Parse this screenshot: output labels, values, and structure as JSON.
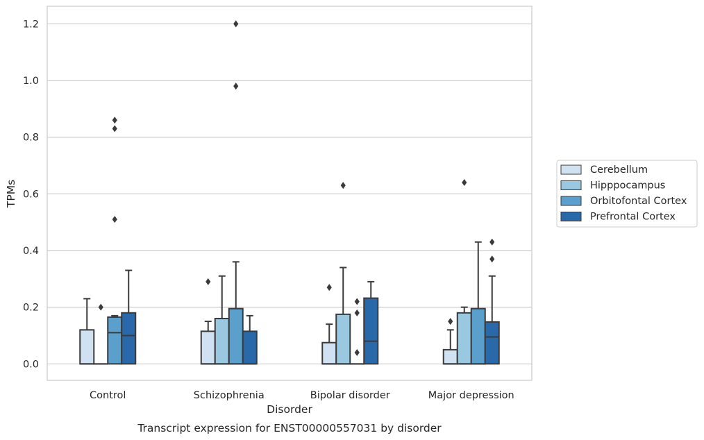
{
  "chart_data": {
    "type": "box",
    "title": "Transcript expression for ENST00000557031 by disorder",
    "xlabel": "Disorder",
    "ylabel": "TPMs",
    "ylim": [
      -0.058,
      1.262
    ],
    "yticks": [
      0.0,
      0.2,
      0.4,
      0.6,
      0.8,
      1.0,
      1.2
    ],
    "ytick_labels": [
      "0.0",
      "0.2",
      "0.4",
      "0.6",
      "0.8",
      "1.0",
      "1.2"
    ],
    "categories": [
      "Control",
      "Schizophrenia",
      "Bipolar disorder",
      "Major depression"
    ],
    "grid": "horizontal",
    "legend_position": "right",
    "series": [
      {
        "name": "Cerebellum",
        "color": "#d0e1f2",
        "boxes": [
          {
            "q1": 0.0,
            "median": 0.0,
            "q3": 0.12,
            "whisker_low": 0.0,
            "whisker_high": 0.23,
            "outliers": []
          },
          {
            "q1": 0.0,
            "median": 0.0,
            "q3": 0.115,
            "whisker_low": 0.0,
            "whisker_high": 0.15,
            "outliers": [
              0.29
            ]
          },
          {
            "q1": 0.0,
            "median": 0.0,
            "q3": 0.075,
            "whisker_low": 0.0,
            "whisker_high": 0.14,
            "outliers": [
              0.27
            ]
          },
          {
            "q1": 0.0,
            "median": 0.0,
            "q3": 0.05,
            "whisker_low": 0.0,
            "whisker_high": 0.12,
            "outliers": [
              0.15
            ]
          }
        ]
      },
      {
        "name": "Hipppocampus",
        "color": "#9ac8e0",
        "boxes": [
          {
            "q1": 0.0,
            "median": 0.0,
            "q3": 0.0,
            "whisker_low": 0.0,
            "whisker_high": 0.0,
            "outliers": [
              0.2
            ]
          },
          {
            "q1": 0.0,
            "median": 0.0,
            "q3": 0.16,
            "whisker_low": 0.0,
            "whisker_high": 0.31,
            "outliers": []
          },
          {
            "q1": 0.0,
            "median": 0.0,
            "q3": 0.175,
            "whisker_low": 0.0,
            "whisker_high": 0.34,
            "outliers": [
              0.63
            ]
          },
          {
            "q1": 0.0,
            "median": 0.0,
            "q3": 0.18,
            "whisker_low": 0.0,
            "whisker_high": 0.2,
            "outliers": [
              0.64
            ]
          }
        ]
      },
      {
        "name": "Orbitofontal Cortex",
        "color": "#5b9fcc",
        "boxes": [
          {
            "q1": 0.0,
            "median": 0.11,
            "q3": 0.165,
            "whisker_low": 0.0,
            "whisker_high": 0.17,
            "outliers": [
              0.51,
              0.83,
              0.86
            ]
          },
          {
            "q1": 0.0,
            "median": 0.0,
            "q3": 0.195,
            "whisker_low": 0.0,
            "whisker_high": 0.36,
            "outliers": [
              0.98,
              1.2
            ]
          },
          {
            "q1": 0.0,
            "median": 0.0,
            "q3": 0.0,
            "whisker_low": 0.0,
            "whisker_high": 0.0,
            "outliers": [
              0.04,
              0.18,
              0.22
            ]
          },
          {
            "q1": 0.0,
            "median": 0.0,
            "q3": 0.195,
            "whisker_low": 0.0,
            "whisker_high": 0.43,
            "outliers": []
          }
        ]
      },
      {
        "name": "Prefrontal Cortex",
        "color": "#2a69a9",
        "boxes": [
          {
            "q1": 0.0,
            "median": 0.1,
            "q3": 0.18,
            "whisker_low": 0.0,
            "whisker_high": 0.33,
            "outliers": []
          },
          {
            "q1": 0.0,
            "median": 0.0,
            "q3": 0.115,
            "whisker_low": 0.0,
            "whisker_high": 0.17,
            "outliers": []
          },
          {
            "q1": 0.0,
            "median": 0.08,
            "q3": 0.232,
            "whisker_low": 0.0,
            "whisker_high": 0.29,
            "outliers": []
          },
          {
            "q1": 0.0,
            "median": 0.095,
            "q3": 0.148,
            "whisker_low": 0.0,
            "whisker_high": 0.31,
            "outliers": [
              0.37,
              0.43
            ]
          }
        ]
      }
    ]
  }
}
